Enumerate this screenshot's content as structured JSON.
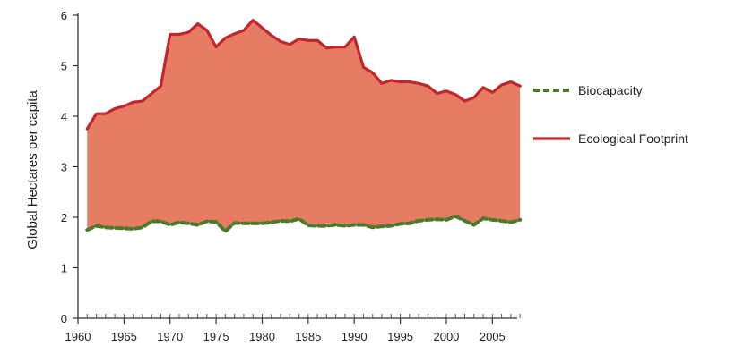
{
  "chart_data": {
    "type": "area",
    "title": "",
    "xlabel": "",
    "ylabel": "Global Hectares per capita",
    "xlim": [
      1960,
      2008
    ],
    "ylim": [
      0,
      6
    ],
    "x_ticks": [
      1960,
      1965,
      1970,
      1975,
      1980,
      1985,
      1990,
      1995,
      2000,
      2005
    ],
    "y_ticks": [
      0,
      1,
      2,
      3,
      4,
      5,
      6
    ],
    "grid": false,
    "legend_position": "right",
    "fill_color": "#e67c64",
    "x": [
      1961,
      1962,
      1963,
      1964,
      1965,
      1966,
      1967,
      1968,
      1969,
      1970,
      1971,
      1972,
      1973,
      1974,
      1975,
      1976,
      1977,
      1978,
      1979,
      1980,
      1981,
      1982,
      1983,
      1984,
      1985,
      1986,
      1987,
      1988,
      1989,
      1990,
      1991,
      1992,
      1993,
      1994,
      1995,
      1996,
      1997,
      1998,
      1999,
      2000,
      2001,
      2002,
      2003,
      2004,
      2005,
      2006,
      2007,
      2008
    ],
    "series": [
      {
        "name": "Biocapacity",
        "color": "#4a7a2a",
        "style": "dashed",
        "values": [
          1.75,
          1.83,
          1.8,
          1.79,
          1.78,
          1.77,
          1.8,
          1.92,
          1.92,
          1.85,
          1.9,
          1.88,
          1.85,
          1.92,
          1.91,
          1.72,
          1.89,
          1.88,
          1.88,
          1.88,
          1.9,
          1.93,
          1.92,
          1.97,
          1.84,
          1.83,
          1.83,
          1.85,
          1.83,
          1.85,
          1.85,
          1.8,
          1.82,
          1.83,
          1.87,
          1.88,
          1.93,
          1.95,
          1.96,
          1.95,
          2.02,
          1.93,
          1.85,
          1.98,
          1.95,
          1.93,
          1.9,
          1.95
        ]
      },
      {
        "name": "Ecological Footprint",
        "color": "#c0272d",
        "style": "solid",
        "values": [
          3.75,
          4.05,
          4.05,
          4.15,
          4.2,
          4.28,
          4.3,
          4.45,
          4.6,
          5.62,
          5.62,
          5.66,
          5.83,
          5.7,
          5.37,
          5.55,
          5.63,
          5.7,
          5.9,
          5.75,
          5.6,
          5.48,
          5.42,
          5.53,
          5.5,
          5.5,
          5.35,
          5.37,
          5.37,
          5.57,
          4.97,
          4.86,
          4.65,
          4.71,
          4.68,
          4.68,
          4.65,
          4.6,
          4.45,
          4.5,
          4.43,
          4.3,
          4.37,
          4.57,
          4.47,
          4.62,
          4.68,
          4.6
        ]
      }
    ]
  }
}
